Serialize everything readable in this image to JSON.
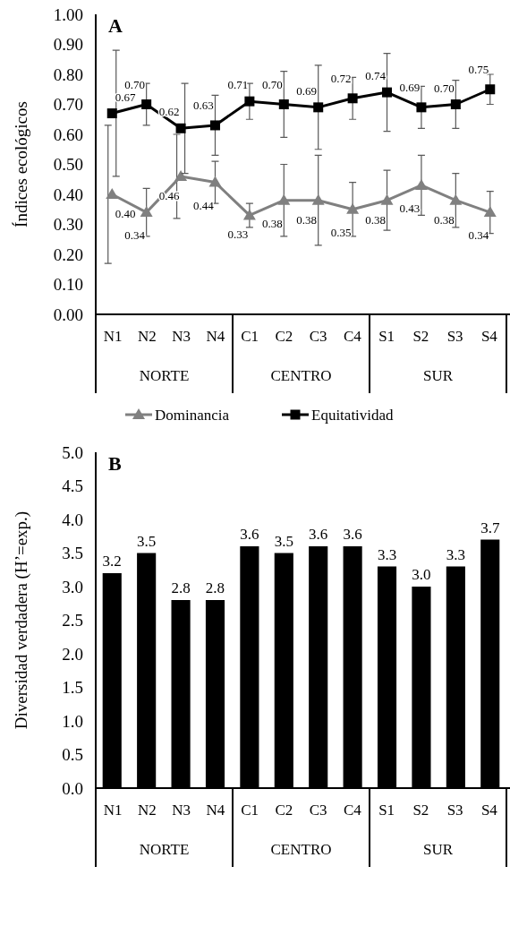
{
  "chart_data": [
    {
      "type": "line",
      "title": "A",
      "ylabel": "Índices ecológicos",
      "categories": [
        "N1",
        "N2",
        "N3",
        "N4",
        "C1",
        "C2",
        "C3",
        "C4",
        "S1",
        "S2",
        "S3",
        "S4"
      ],
      "annotations": [
        "NORTE",
        "CENTRO",
        "SUR"
      ],
      "ylim": [
        0,
        1
      ],
      "yticks": [
        {
          "value": 0,
          "label": "0.00"
        },
        {
          "value": 0.1,
          "label": "0.10"
        },
        {
          "value": 0.2,
          "label": "0.20"
        },
        {
          "value": 0.3,
          "label": "0.30"
        },
        {
          "value": 0.4,
          "label": "0.40"
        },
        {
          "value": 0.5,
          "label": "0.50"
        },
        {
          "value": 0.6,
          "label": "0.60"
        },
        {
          "value": 0.7,
          "label": "0.70"
        },
        {
          "value": 0.8,
          "label": "0.80"
        },
        {
          "value": 0.9,
          "label": "0.90"
        },
        {
          "value": 1,
          "label": "1.00"
        }
      ],
      "legend": "bottom",
      "series": [
        {
          "name": "Dominancia",
          "color": "#808080",
          "marker": "triangle",
          "values": [
            0.4,
            0.34,
            0.46,
            0.44,
            0.33,
            0.38,
            0.38,
            0.35,
            0.38,
            0.43,
            0.38,
            0.34
          ],
          "value_labels": [
            "0.40",
            "0.34",
            "0.46",
            "0.44",
            "0.33",
            "0.38",
            "0.38",
            "0.35",
            "0.38",
            "0.43",
            "0.38",
            "0.34"
          ],
          "errors": [
            0.23,
            0.08,
            0.14,
            0.07,
            0.04,
            0.12,
            0.15,
            0.09,
            0.1,
            0.1,
            0.09,
            0.07
          ]
        },
        {
          "name": "Equitatividad",
          "color": "#000000",
          "marker": "square",
          "values": [
            0.67,
            0.7,
            0.62,
            0.63,
            0.71,
            0.7,
            0.69,
            0.72,
            0.74,
            0.69,
            0.7,
            0.75
          ],
          "value_labels": [
            "0.67",
            "0.70",
            "0.62",
            "0.63",
            "0.71",
            "0.70",
            "0.69",
            "0.72",
            "0.74",
            "0.69",
            "0.70",
            "0.75"
          ],
          "errors": [
            0.21,
            0.07,
            0.15,
            0.1,
            0.06,
            0.11,
            0.14,
            0.07,
            0.13,
            0.07,
            0.08,
            0.05
          ]
        }
      ]
    },
    {
      "type": "bar",
      "title": "B",
      "ylabel": "Diversidad verdadera (H’=exp.)",
      "categories": [
        "N1",
        "N2",
        "N3",
        "N4",
        "C1",
        "C2",
        "C3",
        "C4",
        "S1",
        "S2",
        "S3",
        "S4"
      ],
      "annotations": [
        "NORTE",
        "CENTRO",
        "SUR"
      ],
      "ylim": [
        0,
        5
      ],
      "yticks": [
        {
          "value": 0,
          "label": "0.0"
        },
        {
          "value": 0.5,
          "label": "0.5"
        },
        {
          "value": 1,
          "label": "1.0"
        },
        {
          "value": 1.5,
          "label": "1.5"
        },
        {
          "value": 2,
          "label": "2.0"
        },
        {
          "value": 2.5,
          "label": "2.5"
        },
        {
          "value": 3,
          "label": "3.0"
        },
        {
          "value": 3.5,
          "label": "3.5"
        },
        {
          "value": 4,
          "label": "4.0"
        },
        {
          "value": 4.5,
          "label": "4.5"
        },
        {
          "value": 5,
          "label": "5.0"
        }
      ],
      "color": "#000000",
      "values": [
        3.2,
        3.5,
        2.8,
        2.8,
        3.6,
        3.5,
        3.6,
        3.6,
        3.3,
        3.0,
        3.3,
        3.7
      ],
      "value_labels": [
        "3.2",
        "3.5",
        "2.8",
        "2.8",
        "3.6",
        "3.5",
        "3.6",
        "3.6",
        "3.3",
        "3.0",
        "3.3",
        "3.7"
      ]
    }
  ]
}
